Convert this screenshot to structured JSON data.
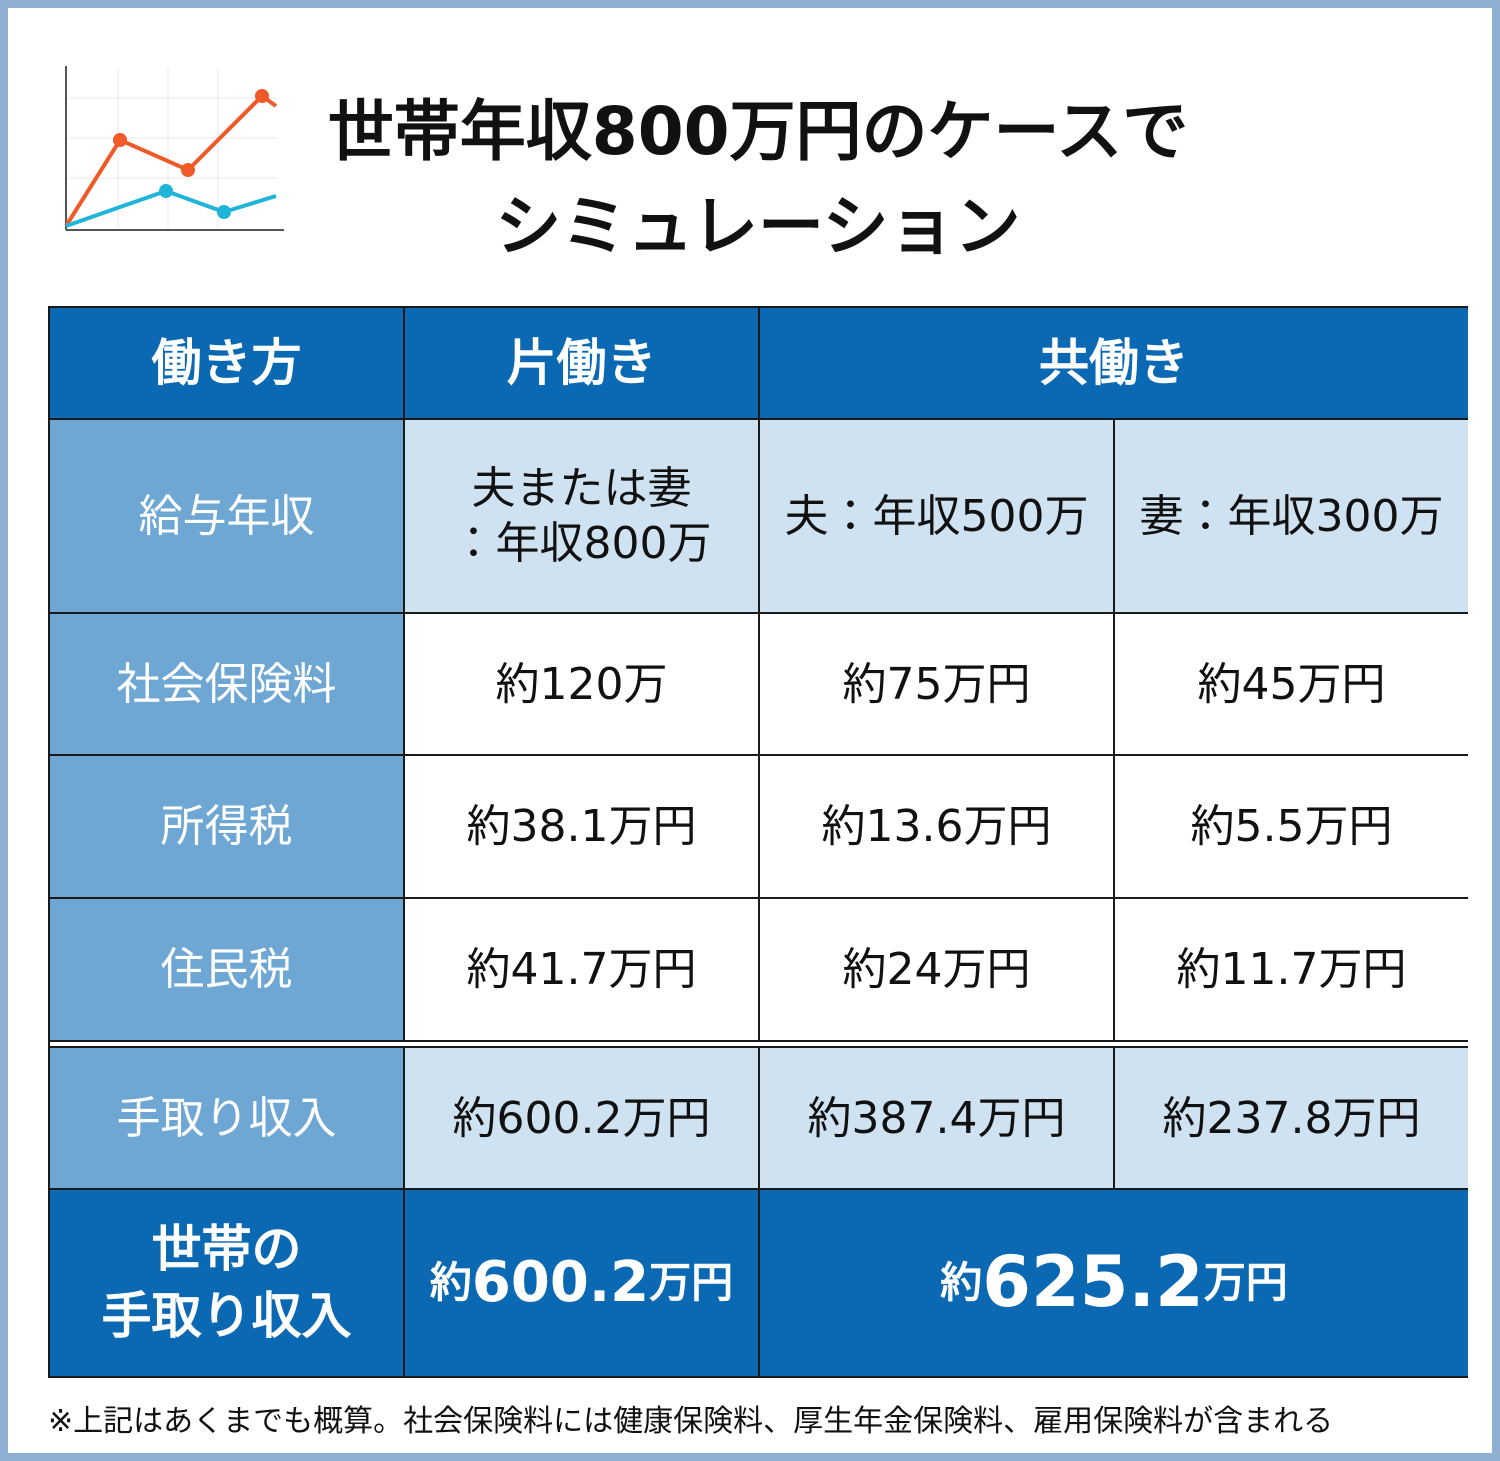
{
  "header": {
    "title_line1": "世帯年収800万円のケースで",
    "title_line2": "シミュレーション"
  },
  "table": {
    "header": [
      "働き方",
      "片働き",
      "共働き"
    ],
    "rows": [
      [
        "給与年収",
        "夫または妻\n：年収800万",
        "夫：年収500万",
        "妻：年収300万"
      ],
      [
        "社会保険料",
        "約120万",
        "約75万円",
        "約45万円"
      ],
      [
        "所得税",
        "約38.1万円",
        "約13.6万円",
        "約5.5万円"
      ],
      [
        "住民税",
        "約41.7万円",
        "約24万円",
        "約11.7万円"
      ],
      [
        "手取り収入",
        "約600.2万円",
        "約387.4万円",
        "約237.8万円"
      ]
    ],
    "total": {
      "label": "世帯の\n手取り収入",
      "single": {
        "prefix": "約",
        "number": "600.2",
        "unit": "万円"
      },
      "dual": {
        "prefix": "約",
        "number": "625.2",
        "unit": "万円"
      }
    }
  },
  "footnote": "※上記はあくまでも概算。社会保険料には健康保険料、厚生年金保険料、雇用保険料が含まれる"
}
